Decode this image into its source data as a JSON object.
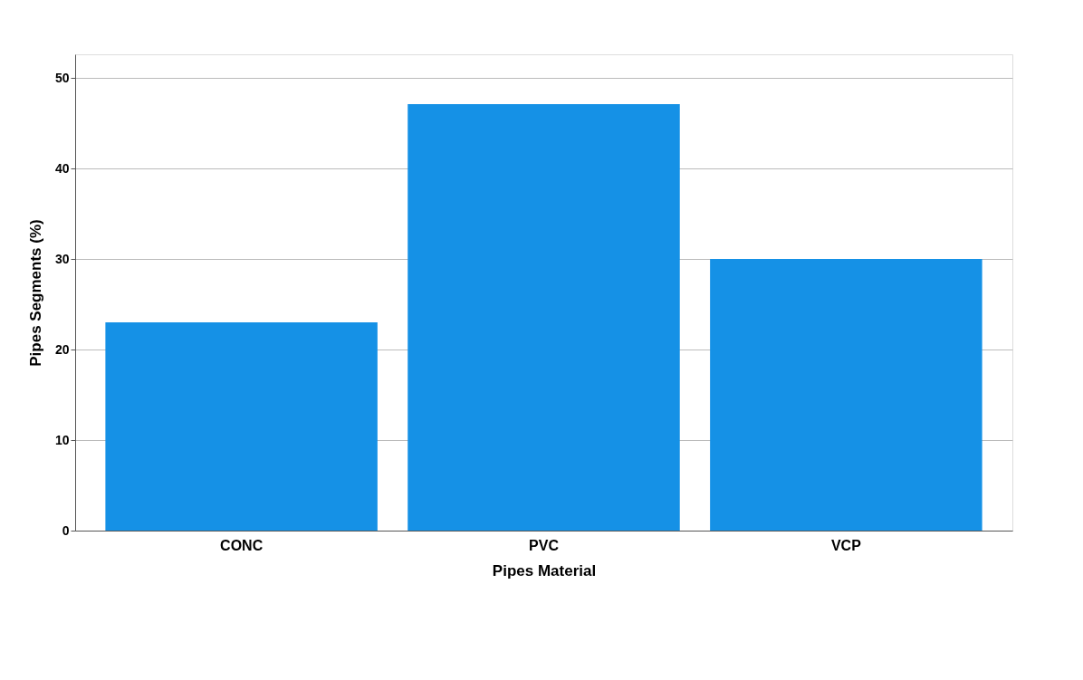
{
  "chart_data": {
    "type": "bar",
    "xlabel": "Pipes Material",
    "ylabel": "Pipes Segments (%)",
    "categories": [
      "CONC",
      "PVC",
      "VCP"
    ],
    "values": [
      23.0,
      47.1,
      30.0
    ],
    "color": "#1591e6",
    "ylim": [
      0,
      52.6
    ],
    "yticks": [
      0,
      10,
      20,
      30,
      40,
      50
    ],
    "grid": "y"
  }
}
